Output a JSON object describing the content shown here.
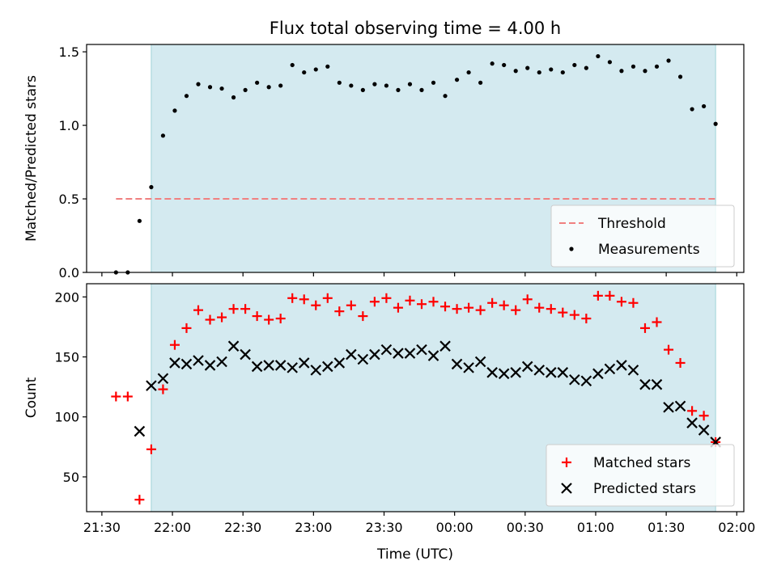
{
  "chart_data": [
    {
      "type": "scatter",
      "title": "Flux total observing time = 4.00 h",
      "ylabel": "Matched/Predicted stars",
      "ylim": [
        0,
        1.55
      ],
      "yticks": [
        0.0,
        0.5,
        1.0,
        1.5
      ],
      "ytick_labels": [
        "0.0",
        "0.5",
        "1.0",
        "1.5"
      ],
      "x_unit": "minutes after 21:30 UTC",
      "xlim": [
        -6.5,
        273
      ],
      "observing_window": [
        21,
        261
      ],
      "threshold": {
        "name": "Threshold",
        "value": 0.5,
        "x_range": [
          6,
          261
        ],
        "color": "#f08080"
      },
      "series": [
        {
          "name": "Measurements",
          "color": "#000000",
          "x": [
            6,
            11,
            16,
            21,
            26,
            31,
            36,
            41,
            46,
            51,
            56,
            61,
            66,
            71,
            76,
            81,
            86,
            91,
            96,
            101,
            106,
            111,
            116,
            121,
            126,
            131,
            136,
            141,
            146,
            151,
            156,
            161,
            166,
            171,
            176,
            181,
            186,
            191,
            196,
            201,
            206,
            211,
            216,
            221,
            226,
            231,
            236,
            241,
            246,
            251,
            256,
            261
          ],
          "y": [
            0.0,
            0.0,
            0.35,
            0.58,
            0.93,
            1.1,
            1.2,
            1.28,
            1.26,
            1.25,
            1.19,
            1.24,
            1.29,
            1.26,
            1.27,
            1.41,
            1.36,
            1.38,
            1.4,
            1.29,
            1.27,
            1.24,
            1.28,
            1.27,
            1.24,
            1.28,
            1.24,
            1.29,
            1.2,
            1.31,
            1.36,
            1.29,
            1.42,
            1.41,
            1.37,
            1.39,
            1.36,
            1.38,
            1.36,
            1.41,
            1.39,
            1.47,
            1.43,
            1.37,
            1.4,
            1.37,
            1.4,
            1.44,
            1.33,
            1.11,
            1.13,
            1.01
          ]
        }
      ],
      "legend": {
        "position": "lower right",
        "entries": [
          "Threshold",
          "Measurements"
        ]
      }
    },
    {
      "type": "scatter",
      "xlabel": "Time (UTC)",
      "ylabel": "Count",
      "ylim": [
        21,
        211
      ],
      "yticks": [
        50,
        100,
        150,
        200
      ],
      "ytick_labels": [
        "50",
        "100",
        "150",
        "200"
      ],
      "x_unit": "minutes after 21:30 UTC",
      "xlim": [
        -6.5,
        273
      ],
      "xticks": [
        0,
        30,
        60,
        90,
        120,
        150,
        180,
        210,
        240,
        270
      ],
      "xtick_labels": [
        "21:30",
        "22:00",
        "22:30",
        "23:00",
        "23:30",
        "00:00",
        "00:30",
        "01:00",
        "01:30",
        "02:00"
      ],
      "observing_window": [
        21,
        261
      ],
      "series": [
        {
          "name": "Matched stars",
          "color": "#ff0000",
          "marker": "plus",
          "x": [
            6,
            11,
            16,
            21,
            26,
            31,
            36,
            41,
            46,
            51,
            56,
            61,
            66,
            71,
            76,
            81,
            86,
            91,
            96,
            101,
            106,
            111,
            116,
            121,
            126,
            131,
            136,
            141,
            146,
            151,
            156,
            161,
            166,
            171,
            176,
            181,
            186,
            191,
            196,
            201,
            206,
            211,
            216,
            221,
            226,
            231,
            236,
            241,
            246,
            251,
            256,
            261
          ],
          "y": [
            117,
            117,
            31,
            73,
            123,
            160,
            174,
            189,
            181,
            183,
            190,
            190,
            184,
            181,
            182,
            199,
            198,
            193,
            199,
            188,
            193,
            184,
            196,
            199,
            191,
            197,
            194,
            196,
            192,
            190,
            191,
            189,
            195,
            193,
            189,
            198,
            191,
            190,
            187,
            185,
            182,
            201,
            201,
            196,
            195,
            174,
            179,
            156,
            145,
            105,
            101,
            79
          ]
        },
        {
          "name": "Predicted stars",
          "color": "#000000",
          "marker": "x",
          "x": [
            16,
            21,
            26,
            31,
            36,
            41,
            46,
            51,
            56,
            61,
            66,
            71,
            76,
            81,
            86,
            91,
            96,
            101,
            106,
            111,
            116,
            121,
            126,
            131,
            136,
            141,
            146,
            151,
            156,
            161,
            166,
            171,
            176,
            181,
            186,
            191,
            196,
            201,
            206,
            211,
            216,
            221,
            226,
            231,
            236,
            241,
            246,
            251,
            256,
            261
          ],
          "y": [
            88,
            126,
            132,
            145,
            144,
            147,
            143,
            146,
            159,
            152,
            142,
            143,
            143,
            141,
            145,
            139,
            142,
            145,
            152,
            148,
            152,
            156,
            153,
            153,
            156,
            151,
            159,
            144,
            141,
            146,
            137,
            136,
            137,
            142,
            139,
            137,
            137,
            131,
            130,
            136,
            140,
            143,
            139,
            127,
            127,
            108,
            109,
            95,
            89,
            79
          ]
        }
      ],
      "legend": {
        "position": "lower right",
        "entries": [
          "Matched stars",
          "Predicted stars"
        ]
      }
    }
  ],
  "style": {
    "window_fill": "#d4eaf0",
    "window_edge": "#9fd3d8",
    "legend_border": "#cccccc"
  }
}
